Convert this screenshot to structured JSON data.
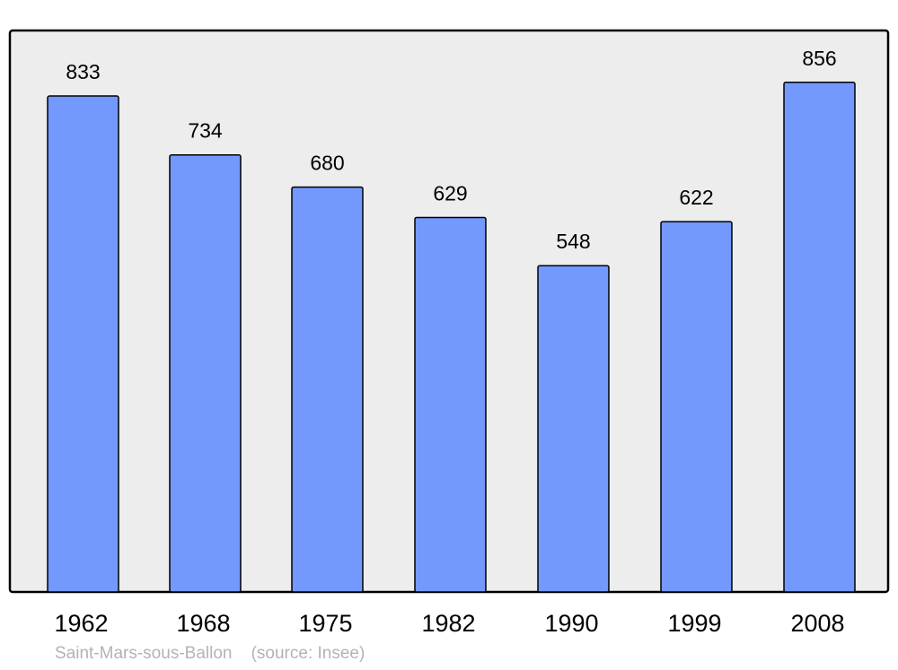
{
  "chart_data": {
    "type": "bar",
    "title": "",
    "xlabel": "",
    "ylabel": "",
    "categories": [
      "1962",
      "1968",
      "1975",
      "1982",
      "1990",
      "1999",
      "2008"
    ],
    "values": [
      833,
      734,
      680,
      629,
      548,
      622,
      856
    ],
    "data_labels": [
      "833",
      "734",
      "680",
      "629",
      "548",
      "622",
      "856"
    ],
    "ylim": [
      0,
      943
    ],
    "grid": false,
    "legend": "none",
    "colors": {
      "bar": "#7399ff",
      "plot_background": "#ededed",
      "border": "#000000",
      "footer_text": "#b3b3b3"
    }
  },
  "footer": {
    "place": "Saint-Mars-sous-Ballon",
    "source": "(source: Insee)"
  }
}
